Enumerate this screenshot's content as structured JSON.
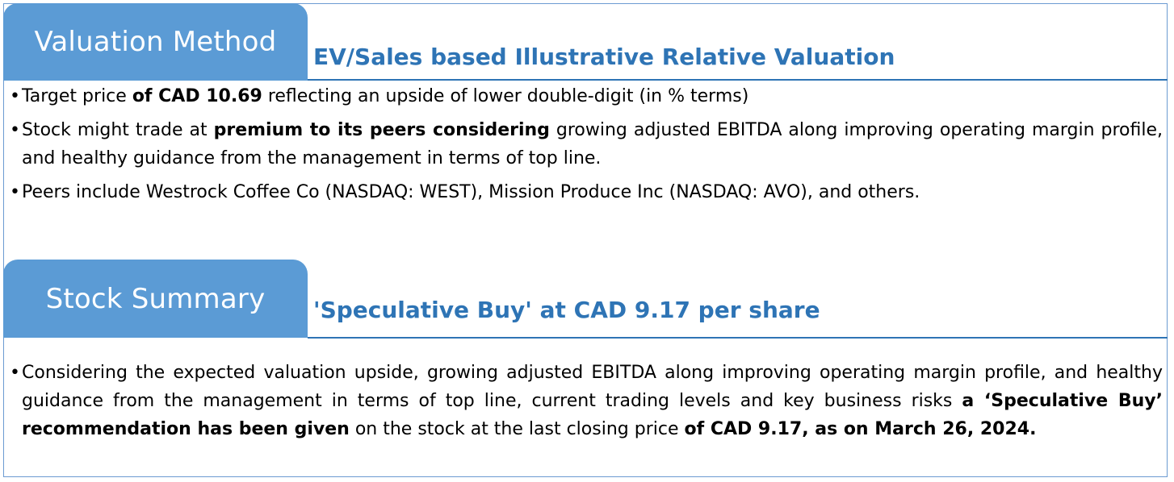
{
  "valuation": {
    "tab_title": "Valuation Method",
    "subtitle": "EV/Sales based Illustrative Relative Valuation",
    "bullets": [
      {
        "parts": [
          {
            "text": "Target price ",
            "bold": false
          },
          {
            "text": "of CAD 10.69",
            "bold": true
          },
          {
            "text": " reflecting an upside of lower double-digit (in % terms)",
            "bold": false
          }
        ]
      },
      {
        "parts": [
          {
            "text": "Stock might trade at ",
            "bold": false
          },
          {
            "text": "premium to its peers considering",
            "bold": true
          },
          {
            "text": " growing adjusted EBITDA along improving operating margin profile, and healthy guidance from the management in terms of top line.",
            "bold": false
          }
        ]
      },
      {
        "parts": [
          {
            "text": "Peers include Westrock Coffee Co (NASDAQ: WEST), Mission Produce Inc (NASDAQ: AVO), and others.",
            "bold": false
          }
        ]
      }
    ]
  },
  "stock_summary": {
    "tab_title": "Stock Summary",
    "subtitle": "'Speculative Buy' at CAD 9.17 per share",
    "bullets": [
      {
        "parts": [
          {
            "text": "Considering the expected valuation upside, growing adjusted EBITDA along improving operating margin profile, and healthy guidance from the management in terms of top line, current trading levels and key business risks ",
            "bold": false
          },
          {
            "text": "a ‘Speculative Buy’ recommendation has been given",
            "bold": true
          },
          {
            "text": " on the stock at the last closing price ",
            "bold": false
          },
          {
            "text": "of CAD 9.17, as on March 26, 2024.",
            "bold": true
          }
        ]
      }
    ]
  },
  "colors": {
    "tab_fill": "#5b9bd5",
    "subtitle_text": "#2e74b5",
    "frame_border": "#6c9bd2"
  },
  "bullet_glyph": "•"
}
